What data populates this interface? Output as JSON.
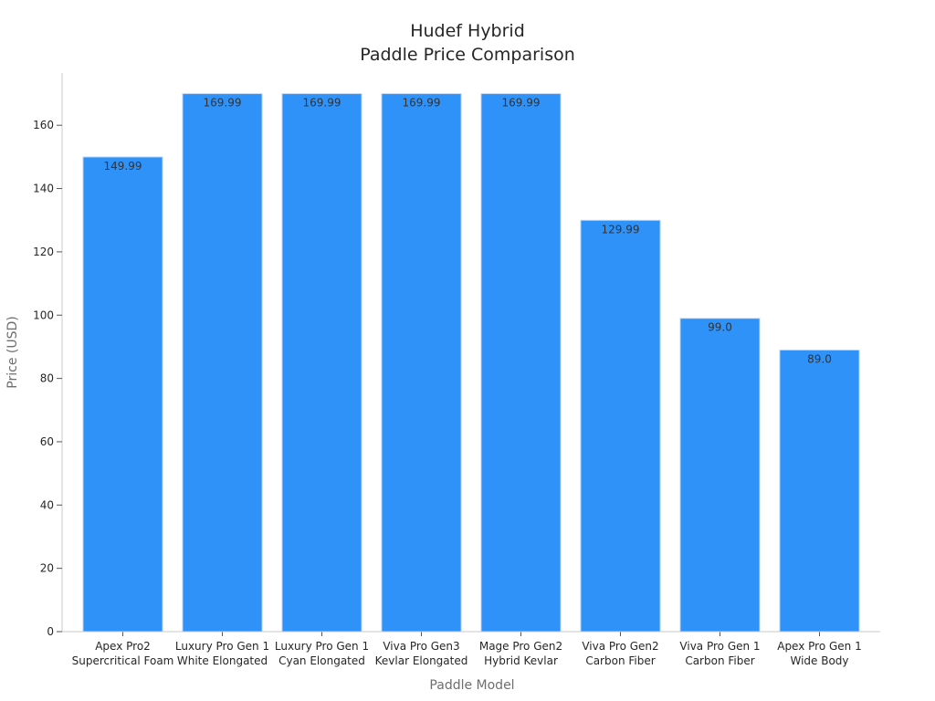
{
  "chart_data": {
    "type": "bar",
    "title_lines": [
      "Hudef Hybrid",
      "Paddle Price Comparison"
    ],
    "xlabel": "Paddle Model",
    "ylabel": "Price (USD)",
    "categories": [
      [
        "Apex Pro2",
        "Supercritical Foam"
      ],
      [
        "Luxury Pro Gen 1",
        "White Elongated"
      ],
      [
        "Luxury Pro Gen 1",
        "Cyan Elongated"
      ],
      [
        "Viva Pro Gen3",
        "Kevlar Elongated"
      ],
      [
        "Mage Pro Gen2",
        "Hybrid Kevlar"
      ],
      [
        "Viva Pro Gen2",
        "Carbon Fiber"
      ],
      [
        "Viva Pro Gen 1",
        "Carbon Fiber"
      ],
      [
        "Apex Pro Gen 1",
        "Wide Body"
      ]
    ],
    "values": [
      149.99,
      169.99,
      169.99,
      169.99,
      169.99,
      129.99,
      99.0,
      89.0
    ],
    "value_labels": [
      "149.99",
      "169.99",
      "169.99",
      "169.99",
      "169.99",
      "129.99",
      "99.0",
      "89.0"
    ],
    "ylim": [
      0,
      176.5
    ],
    "yticks": [
      0,
      20,
      40,
      60,
      80,
      100,
      120,
      140,
      160
    ],
    "bar_color": "#2f92f9",
    "bar_edge_color": "#c8dcf5",
    "grid": false,
    "legend": "none"
  }
}
